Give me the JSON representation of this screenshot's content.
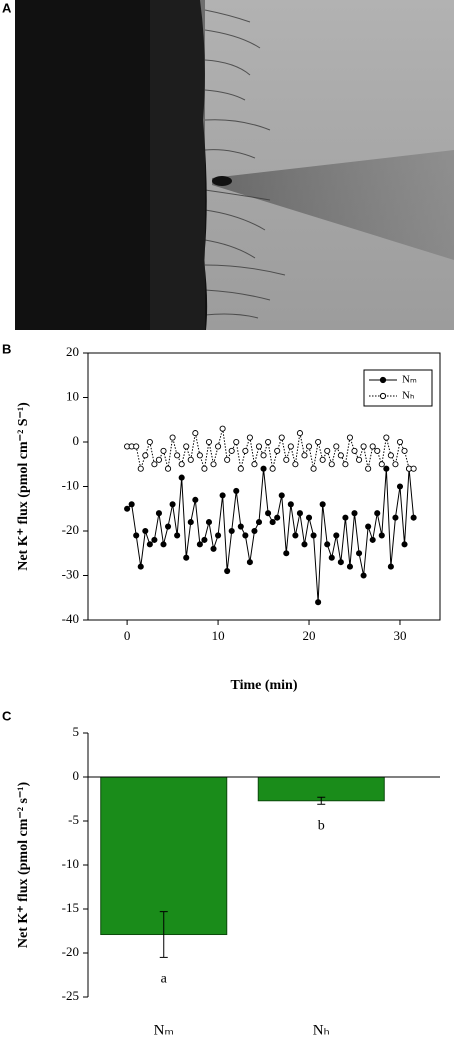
{
  "panel_labels": [
    "A",
    "B",
    "C"
  ],
  "chart_data": [
    {
      "type": "line",
      "y_label": "Net K⁺ flux (pmol cm⁻² S⁻¹)",
      "x_label": "Time (min)",
      "xlim": [
        -4.3,
        34.4
      ],
      "xticks": [
        0,
        10,
        20,
        30
      ],
      "ylim": [
        -40,
        20
      ],
      "yticks": [
        20,
        10,
        0,
        -10,
        -20,
        -30,
        -40
      ],
      "legend": "top-right",
      "x": [
        0,
        0.5,
        1,
        1.5,
        2,
        2.5,
        3,
        3.5,
        4,
        4.5,
        5,
        5.5,
        6,
        6.5,
        7,
        7.5,
        8,
        8.5,
        9,
        9.5,
        10,
        10.5,
        11,
        11.5,
        12,
        12.5,
        13,
        13.5,
        14,
        14.5,
        15,
        15.5,
        16,
        16.5,
        17,
        17.5,
        18,
        18.5,
        19,
        19.5,
        20,
        20.5,
        21,
        21.5,
        22,
        22.5,
        23,
        23.5,
        24,
        24.5,
        25,
        25.5,
        26,
        26.5,
        27,
        27.5,
        28,
        28.5,
        29,
        29.5,
        30,
        30.5,
        31,
        31.5
      ],
      "series": [
        {
          "name": "Nₘ",
          "color": "#000000",
          "marker": "filled",
          "linestyle": "solid",
          "values": [
            -15,
            -14,
            -21,
            -28,
            -20,
            -23,
            -22,
            -16,
            -23,
            -19,
            -14,
            -21,
            -8,
            -26,
            -18,
            -13,
            -23,
            -22,
            -18,
            -24,
            -21,
            -12,
            -29,
            -20,
            -11,
            -19,
            -21,
            -27,
            -20,
            -18,
            -6,
            -16,
            -18,
            -17,
            -12,
            -25,
            -14,
            -21,
            -16,
            -23,
            -17,
            -21,
            -36,
            -14,
            -23,
            -26,
            -21,
            -27,
            -17,
            -28,
            -16,
            -25,
            -30,
            -19,
            -22,
            -16,
            -21,
            -6,
            -28,
            -17,
            -10,
            -23,
            -6,
            -17
          ]
        },
        {
          "name": "Nₕ",
          "color": "#000000",
          "marker": "open",
          "linestyle": "dotted",
          "values": [
            -1,
            -1,
            -1,
            -6,
            -3,
            0,
            -5,
            -4,
            -2,
            -6,
            1,
            -3,
            -5,
            -1,
            -4,
            2,
            -3,
            -6,
            0,
            -5,
            -1,
            3,
            -4,
            -2,
            0,
            -6,
            -2,
            1,
            -5,
            -1,
            -3,
            0,
            -6,
            -2,
            1,
            -4,
            -1,
            -5,
            2,
            -3,
            -1,
            -6,
            0,
            -4,
            -2,
            -5,
            -1,
            -3,
            -5,
            1,
            -2,
            -4,
            -1,
            -6,
            -1,
            -2,
            -5,
            1,
            -3,
            -5,
            0,
            -2,
            -6,
            -6
          ]
        }
      ]
    },
    {
      "type": "bar",
      "y_label": "Net K⁺ flux (pmol cm⁻² s⁻¹)",
      "categories": [
        "Nₘ",
        "Nₕ"
      ],
      "values": [
        -17.9,
        -2.7
      ],
      "errors": [
        2.6,
        0.4
      ],
      "annotations": [
        "a",
        "b"
      ],
      "color": "#1a8c1a",
      "ylim": [
        -25,
        5
      ],
      "yticks": [
        5,
        0,
        -5,
        -10,
        -15,
        -20,
        -25
      ]
    }
  ]
}
